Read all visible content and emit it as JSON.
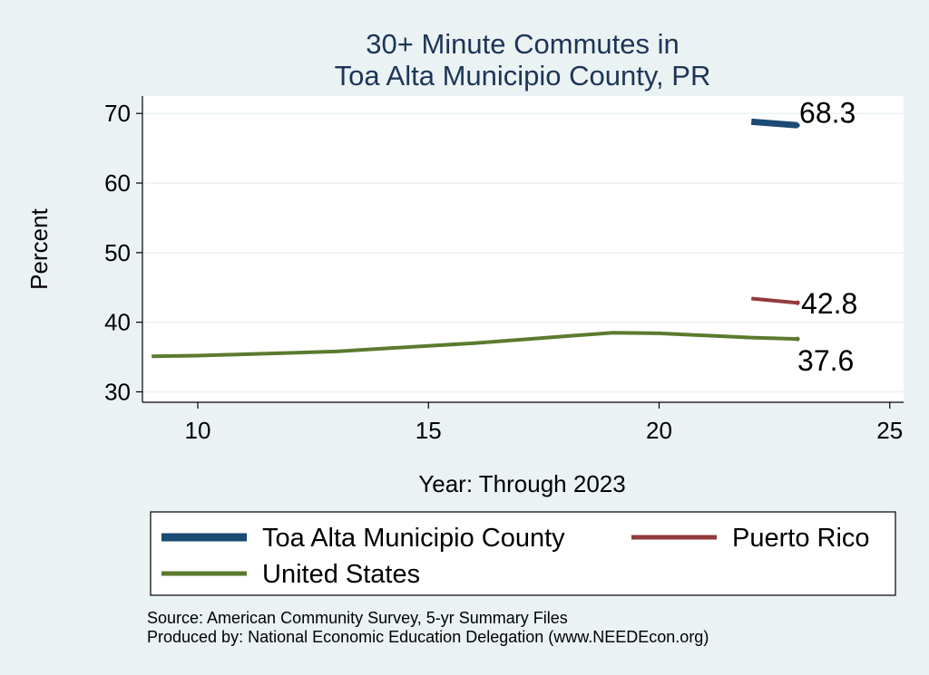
{
  "chart_data": {
    "type": "line",
    "title_lines": [
      "30+ Minute Commutes in",
      "Toa Alta Municipio County, PR"
    ],
    "xlabel": "Year: Through 2023",
    "ylabel": "Percent",
    "xlim": [
      8.8,
      25.3
    ],
    "ylim": [
      28.5,
      72.5
    ],
    "x_ticks": [
      10,
      15,
      20,
      25
    ],
    "y_ticks": [
      30,
      40,
      50,
      60,
      70
    ],
    "grid": true,
    "legend_position": "bottom",
    "series": [
      {
        "name": "Toa Alta Municipio County",
        "color": "#1b4a75",
        "width": "thick",
        "x": [
          22,
          23
        ],
        "y": [
          68.8,
          68.3
        ],
        "end_label": "68.3"
      },
      {
        "name": "Puerto Rico",
        "color": "#923a3c",
        "width": "medium",
        "x": [
          22,
          23
        ],
        "y": [
          43.4,
          42.8
        ],
        "end_label": "42.8"
      },
      {
        "name": "United States",
        "color": "#5b7a2e",
        "width": "medium",
        "x": [
          9,
          10,
          11,
          12,
          13,
          14,
          15,
          16,
          17,
          18,
          19,
          20,
          21,
          22,
          23
        ],
        "y": [
          35.1,
          35.2,
          35.4,
          35.6,
          35.8,
          36.2,
          36.6,
          37.0,
          37.5,
          38.0,
          38.5,
          38.4,
          38.1,
          37.8,
          37.6
        ],
        "end_label": "37.6"
      }
    ],
    "notes": [
      "Source: American Community Survey, 5-yr Summary Files",
      "Produced by: National Economic Education Delegation (www.NEEDEcon.org)"
    ]
  }
}
